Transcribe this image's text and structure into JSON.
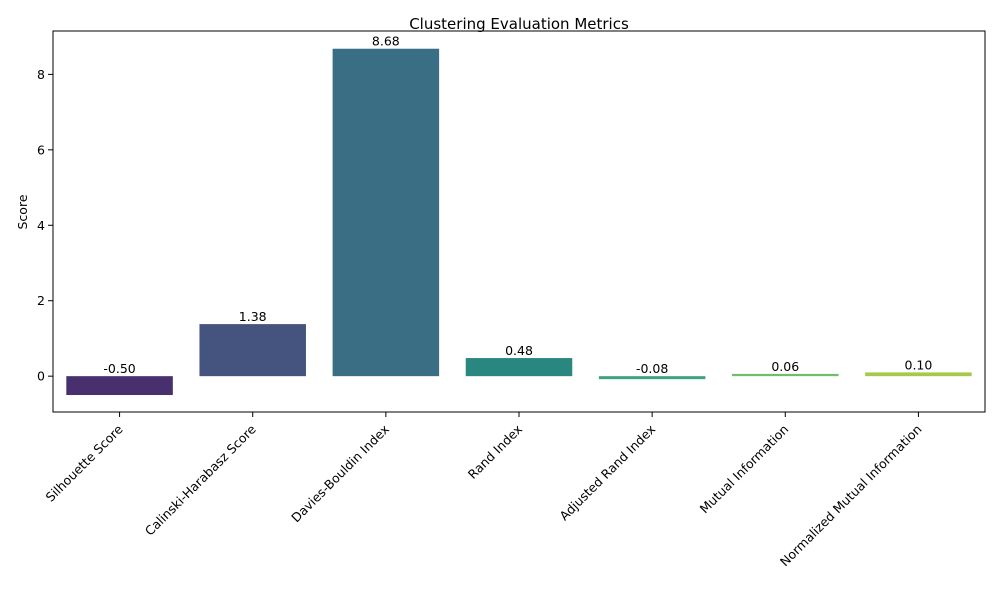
{
  "chart_data": {
    "type": "bar",
    "title": "Clustering Evaluation Metrics",
    "xlabel": "",
    "ylabel": "Score",
    "categories": [
      "Silhouette Score",
      "Calinski-Harabasz Score",
      "Davies-Bouldin Index",
      "Rand Index",
      "Adjusted Rand Index",
      "Mutual Information",
      "Normalized Mutual Information"
    ],
    "values": [
      -0.5,
      1.38,
      8.68,
      0.48,
      -0.08,
      0.06,
      0.1
    ],
    "value_labels": [
      "-0.50",
      "1.38",
      "8.68",
      "0.48",
      "-0.08",
      "0.06",
      "0.10"
    ],
    "colors": [
      "#482f6e",
      "#45537f",
      "#3a6e84",
      "#2a8780",
      "#3fa27d",
      "#6fbe6a",
      "#a8c84a"
    ],
    "ylim": [
      -0.95,
      9.15
    ],
    "yticks": [
      0,
      2,
      4,
      6,
      8
    ],
    "ytick_labels": [
      "0",
      "2",
      "4",
      "6",
      "8"
    ],
    "grid": false,
    "legend": "none"
  }
}
